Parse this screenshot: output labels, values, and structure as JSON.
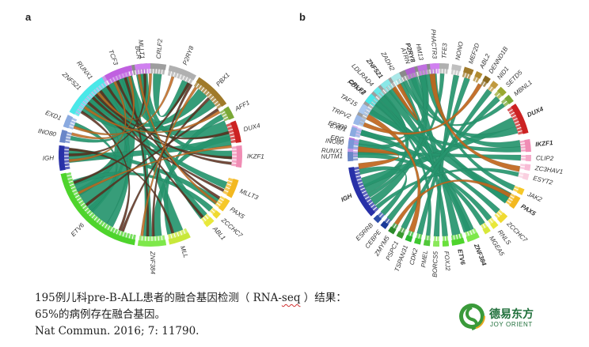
{
  "panels": [
    {
      "letter": "a",
      "genes": [
        {
          "name": "RUNX1",
          "start": 209,
          "end": 255,
          "color": "#c89ae6",
          "bold": false
        },
        {
          "name": "BCR",
          "start": 258,
          "end": 268,
          "color": "#8a8a8a",
          "bold": false
        },
        {
          "name": "CRLF2",
          "start": 270,
          "end": 280,
          "color": "#9e9e9e",
          "bold": false
        },
        {
          "name": "P2RY8",
          "start": 282,
          "end": 300,
          "color": "#b0b0b0",
          "bold": false
        },
        {
          "name": "PBX1",
          "start": 302,
          "end": 326,
          "color": "#a07a2a",
          "bold": false
        },
        {
          "name": "AFF1",
          "start": 328,
          "end": 336,
          "color": "#7aa836",
          "bold": false
        },
        {
          "name": "DUX4",
          "start": 338,
          "end": 352,
          "color": "#cc2222",
          "bold": false
        },
        {
          "name": "IKZF1",
          "start": 354,
          "end": 368,
          "color": "#f08cb4",
          "bold": false
        },
        {
          "name": "MLLT3",
          "start": 376,
          "end": 388,
          "color": "#f3b820",
          "bold": false
        },
        {
          "name": "PAX5",
          "start": 390,
          "end": 398,
          "color": "#f6c828",
          "bold": false
        },
        {
          "name": "ZCCHC7",
          "start": 400,
          "end": 404,
          "color": "#f0da30",
          "bold": false
        },
        {
          "name": "ABL1",
          "start": 406,
          "end": 412,
          "color": "#e8e83a",
          "bold": false
        },
        {
          "name": "MLL",
          "start": 424,
          "end": 438,
          "color": "#c8e83a",
          "bold": false
        },
        {
          "name": "ZNF384",
          "start": 440,
          "end": 458,
          "color": "#7ee84a",
          "bold": false
        },
        {
          "name": "ETV6",
          "start": 460,
          "end": 528,
          "color": "#4ed42c",
          "bold": false
        },
        {
          "name": "IGH",
          "start": 530,
          "end": 546,
          "color": "#2830a8",
          "bold": false
        },
        {
          "name": "INO80",
          "start": 548,
          "end": 556,
          "color": "#6a86c8",
          "bold": false
        },
        {
          "name": "EXD1",
          "start": 558,
          "end": 566,
          "color": "#8aaae0",
          "bold": false
        },
        {
          "name": "ZNF521",
          "start": 568,
          "end": 598,
          "color": "#4ae8e8",
          "bold": false
        },
        {
          "name": "TCF3",
          "start": 600,
          "end": 618,
          "color": "#c060e0",
          "bold": false
        },
        {
          "name": "MLLT1",
          "start": 620,
          "end": 630,
          "color": "#d080f0",
          "bold": false
        }
      ],
      "links": [
        {
          "from": 235,
          "to": 505,
          "width": 20,
          "color": "#26956e"
        },
        {
          "from": 245,
          "to": 490,
          "width": 16,
          "color": "#26956e"
        },
        {
          "from": 220,
          "to": 515,
          "width": 10,
          "color": "#26956e"
        },
        {
          "from": 612,
          "to": 340,
          "width": 10,
          "color": "#26956e"
        },
        {
          "from": 625,
          "to": 360,
          "width": 6,
          "color": "#26956e"
        },
        {
          "from": 263,
          "to": 409,
          "width": 6,
          "color": "#26956e"
        },
        {
          "from": 275,
          "to": 296,
          "width": 6,
          "color": "#26956e"
        },
        {
          "from": 310,
          "to": 585,
          "width": 8,
          "color": "#26956e"
        },
        {
          "from": 320,
          "to": 575,
          "width": 6,
          "color": "#26956e"
        },
        {
          "from": 347,
          "to": 445,
          "width": 6,
          "color": "#26956e"
        },
        {
          "from": 430,
          "to": 610,
          "width": 7,
          "color": "#26956e"
        },
        {
          "from": 538,
          "to": 350,
          "width": 7,
          "color": "#26956e"
        },
        {
          "from": 542,
          "to": 395,
          "width": 5,
          "color": "#26956e"
        },
        {
          "from": 452,
          "to": 614,
          "width": 6,
          "color": "#26956e"
        },
        {
          "from": 382,
          "to": 228,
          "width": 5,
          "color": "#26956e"
        },
        {
          "from": 402,
          "to": 520,
          "width": 4,
          "color": "#26956e"
        },
        {
          "from": 595,
          "to": 480,
          "width": 5,
          "color": "#26956e"
        },
        {
          "from": 552,
          "to": 248,
          "width": 3,
          "color": "#26956e"
        },
        {
          "from": 562,
          "to": 498,
          "width": 3,
          "color": "#26956e"
        },
        {
          "from": 332,
          "to": 436,
          "width": 4,
          "color": "#26956e"
        },
        {
          "from": 212,
          "to": 472,
          "width": 2,
          "color": "#5a2a1a"
        },
        {
          "from": 238,
          "to": 366,
          "width": 2,
          "color": "#5a2a1a"
        },
        {
          "from": 252,
          "to": 452,
          "width": 2,
          "color": "#5a2a1a"
        },
        {
          "from": 266,
          "to": 540,
          "width": 2,
          "color": "#5a2a1a"
        },
        {
          "from": 298,
          "to": 520,
          "width": 2,
          "color": "#5a2a1a"
        },
        {
          "from": 316,
          "to": 470,
          "width": 2,
          "color": "#5a2a1a"
        },
        {
          "from": 344,
          "to": 588,
          "width": 2,
          "color": "#5a2a1a"
        },
        {
          "from": 362,
          "to": 225,
          "width": 2,
          "color": "#5a2a1a"
        },
        {
          "from": 392,
          "to": 606,
          "width": 2,
          "color": "#5a2a1a"
        },
        {
          "from": 410,
          "to": 232,
          "width": 2,
          "color": "#5a2a1a"
        },
        {
          "from": 434,
          "to": 544,
          "width": 2,
          "color": "#5a2a1a"
        },
        {
          "from": 448,
          "to": 300,
          "width": 2,
          "color": "#5a2a1a"
        },
        {
          "from": 502,
          "to": 326,
          "width": 2,
          "color": "#5a2a1a"
        },
        {
          "from": 580,
          "to": 386,
          "width": 2,
          "color": "#5a2a1a"
        },
        {
          "from": 255,
          "to": 555,
          "width": 2,
          "color": "#c0651c"
        },
        {
          "from": 270,
          "to": 590,
          "width": 2,
          "color": "#c0651c"
        },
        {
          "from": 286,
          "to": 560,
          "width": 2,
          "color": "#c0651c"
        },
        {
          "from": 304,
          "to": 456,
          "width": 2,
          "color": "#c0651c"
        },
        {
          "from": 354,
          "to": 512,
          "width": 2,
          "color": "#c0651c"
        },
        {
          "from": 396,
          "to": 622,
          "width": 2,
          "color": "#c0651c"
        },
        {
          "from": 216,
          "to": 328,
          "width": 2,
          "color": "#c0651c"
        },
        {
          "from": 536,
          "to": 244,
          "width": 2,
          "color": "#c0651c"
        }
      ]
    },
    {
      "letter": "b",
      "genes": [
        {
          "name": "RUNX1",
          "start": 179,
          "end": 185,
          "color": "#c89ae6",
          "bold": false
        },
        {
          "name": "ERG",
          "start": 187,
          "end": 191,
          "color": "#b070d8",
          "bold": false
        },
        {
          "name": "EP300",
          "start": 193,
          "end": 199,
          "color": "#d4b0ee",
          "bold": false
        },
        {
          "name": "CRLF2",
          "start": 201,
          "end": 238,
          "color": "#9e9e9e",
          "bold": true
        },
        {
          "name": "P2RY8",
          "start": 240,
          "end": 268,
          "color": "#8a8a8a",
          "bold": true
        },
        {
          "name": "TFE3",
          "start": 270,
          "end": 276,
          "color": "#b0b0b0",
          "bold": false
        },
        {
          "name": "NONO",
          "start": 278,
          "end": 284,
          "color": "#c0c0c0",
          "bold": false
        },
        {
          "name": "MEF2D",
          "start": 286,
          "end": 292,
          "color": "#a07a2a",
          "bold": false
        },
        {
          "name": "ABL2",
          "start": 294,
          "end": 298,
          "color": "#b08a30",
          "bold": false
        },
        {
          "name": "DENND1B",
          "start": 300,
          "end": 304,
          "color": "#8a6a20",
          "bold": false
        },
        {
          "name": "NID1",
          "start": 306,
          "end": 310,
          "color": "#c09a40",
          "bold": false
        },
        {
          "name": "SETD5",
          "start": 312,
          "end": 317,
          "color": "#9aa830",
          "bold": false
        },
        {
          "name": "MBNL1",
          "start": 319,
          "end": 324,
          "color": "#7aa836",
          "bold": false
        },
        {
          "name": "DUX4",
          "start": 326,
          "end": 346,
          "color": "#cc2222",
          "bold": true
        },
        {
          "name": "IKZF1",
          "start": 350,
          "end": 358,
          "color": "#f08cb4",
          "bold": true
        },
        {
          "name": "CLIP2",
          "start": 360,
          "end": 364,
          "color": "#f4a8c8",
          "bold": false
        },
        {
          "name": "ZC3HAV1",
          "start": 366,
          "end": 370,
          "color": "#f8bcd6",
          "bold": false
        },
        {
          "name": "ESYT2",
          "start": 372,
          "end": 376,
          "color": "#fad0e0",
          "bold": false
        },
        {
          "name": "JAK2",
          "start": 382,
          "end": 386,
          "color": "#f6c828",
          "bold": false
        },
        {
          "name": "PAX5",
          "start": 388,
          "end": 396,
          "color": "#f3b820",
          "bold": true
        },
        {
          "name": "ZCCHC7",
          "start": 402,
          "end": 408,
          "color": "#f0da30",
          "bold": false
        },
        {
          "name": "RNLS",
          "start": 410,
          "end": 414,
          "color": "#e8e83a",
          "bold": false
        },
        {
          "name": "MGEA5",
          "start": 416,
          "end": 420,
          "color": "#d8e83a",
          "bold": false
        },
        {
          "name": "ZNF384",
          "start": 424,
          "end": 432,
          "color": "#7ee84a",
          "bold": true
        },
        {
          "name": "ETV6",
          "start": 434,
          "end": 442,
          "color": "#4ed42c",
          "bold": true
        },
        {
          "name": "FOXJ2",
          "start": 444,
          "end": 448,
          "color": "#6ae03c",
          "bold": false
        },
        {
          "name": "BORCS5",
          "start": 450,
          "end": 454,
          "color": "#8ae85a",
          "bold": false
        },
        {
          "name": "PMEL",
          "start": 456,
          "end": 460,
          "color": "#52c83a",
          "bold": false
        },
        {
          "name": "CDK2",
          "start": 462,
          "end": 466,
          "color": "#3ec830",
          "bold": false
        },
        {
          "name": "TSPAN31",
          "start": 468,
          "end": 472,
          "color": "#2ab830",
          "bold": false
        },
        {
          "name": "PSPC1",
          "start": 474,
          "end": 478,
          "color": "#3a9a30",
          "bold": false
        },
        {
          "name": "ZMYM5",
          "start": 480,
          "end": 484,
          "color": "#2a8a2a",
          "bold": false
        },
        {
          "name": "CEBPE",
          "start": 486,
          "end": 490,
          "color": "#1a3a98",
          "bold": false
        },
        {
          "name": "ESRRB",
          "start": 492,
          "end": 496,
          "color": "#2a4aa8",
          "bold": false
        },
        {
          "name": "IGH",
          "start": 498,
          "end": 532,
          "color": "#2830a8",
          "bold": true
        },
        {
          "name": "NUTM1",
          "start": 536,
          "end": 542,
          "color": "#6a86c8",
          "bold": false
        },
        {
          "name": "INO80",
          "start": 544,
          "end": 550,
          "color": "#7a96d8",
          "bold": false
        },
        {
          "name": "EXD1",
          "start": 552,
          "end": 558,
          "color": "#8aaae0",
          "bold": false
        },
        {
          "name": "TRPV2",
          "start": 560,
          "end": 566,
          "color": "#9ab8e8",
          "bold": false
        },
        {
          "name": "TAF15",
          "start": 568,
          "end": 574,
          "color": "#aac8f0",
          "bold": false
        },
        {
          "name": "FOXK2",
          "start": 576,
          "end": 582,
          "color": "#4ae8e8",
          "bold": false
        },
        {
          "name": "LDLRAD4",
          "start": 584,
          "end": 588,
          "color": "#6ae8e8",
          "bold": false
        },
        {
          "name": "ZNF521",
          "start": 590,
          "end": 596,
          "color": "#8ae8e8",
          "bold": true
        },
        {
          "name": "ZADH2",
          "start": 598,
          "end": 604,
          "color": "#aae8e8",
          "bold": false
        },
        {
          "name": "ATRN",
          "start": 608,
          "end": 614,
          "color": "#b060d0",
          "bold": false
        },
        {
          "name": "HM13",
          "start": 616,
          "end": 622,
          "color": "#c070e0",
          "bold": false
        },
        {
          "name": "PHACTR3",
          "start": 624,
          "end": 630,
          "color": "#d080f0",
          "bold": false
        }
      ],
      "links": [
        {
          "from": 215,
          "to": 392,
          "width": 8,
          "color": "#26956e"
        },
        {
          "from": 225,
          "to": 515,
          "width": 7,
          "color": "#26956e"
        },
        {
          "from": 230,
          "to": 428,
          "width": 6,
          "color": "#26956e"
        },
        {
          "from": 250,
          "to": 438,
          "width": 6,
          "color": "#26956e"
        },
        {
          "from": 258,
          "to": 505,
          "width": 6,
          "color": "#26956e"
        },
        {
          "from": 262,
          "to": 352,
          "width": 5,
          "color": "#26956e"
        },
        {
          "from": 336,
          "to": 520,
          "width": 7,
          "color": "#26956e"
        },
        {
          "from": 342,
          "to": 612,
          "width": 5,
          "color": "#26956e"
        },
        {
          "from": 356,
          "to": 572,
          "width": 4,
          "color": "#26956e"
        },
        {
          "from": 362,
          "to": 182,
          "width": 4,
          "color": "#26956e"
        },
        {
          "from": 384,
          "to": 626,
          "width": 4,
          "color": "#26956e"
        },
        {
          "from": 394,
          "to": 594,
          "width": 5,
          "color": "#26956e"
        },
        {
          "from": 404,
          "to": 196,
          "width": 4,
          "color": "#26956e"
        },
        {
          "from": 412,
          "to": 540,
          "width": 4,
          "color": "#26956e"
        },
        {
          "from": 418,
          "to": 189,
          "width": 4,
          "color": "#26956e"
        },
        {
          "from": 430,
          "to": 580,
          "width": 5,
          "color": "#26956e"
        },
        {
          "from": 446,
          "to": 602,
          "width": 4,
          "color": "#26956e"
        },
        {
          "from": 452,
          "to": 282,
          "width": 4,
          "color": "#26956e"
        },
        {
          "from": 464,
          "to": 290,
          "width": 4,
          "color": "#26956e"
        },
        {
          "from": 476,
          "to": 308,
          "width": 4,
          "color": "#26956e"
        },
        {
          "from": 488,
          "to": 316,
          "width": 4,
          "color": "#26956e"
        },
        {
          "from": 494,
          "to": 528,
          "width": 4,
          "color": "#26956e"
        },
        {
          "from": 546,
          "to": 618,
          "width": 4,
          "color": "#26956e"
        },
        {
          "from": 556,
          "to": 585,
          "width": 4,
          "color": "#26956e"
        },
        {
          "from": 220,
          "to": 458,
          "width": 3,
          "color": "#26956e"
        },
        {
          "from": 374,
          "to": 500,
          "width": 3,
          "color": "#26956e"
        },
        {
          "from": 245,
          "to": 322,
          "width": 3,
          "color": "#26956e"
        },
        {
          "from": 510,
          "to": 272,
          "width": 3,
          "color": "#26956e"
        },
        {
          "from": 265,
          "to": 370,
          "width": 4,
          "color": "#c0651c"
        },
        {
          "from": 208,
          "to": 470,
          "width": 4,
          "color": "#c0651c"
        },
        {
          "from": 184,
          "to": 532,
          "width": 4,
          "color": "#c0651c"
        },
        {
          "from": 300,
          "to": 562,
          "width": 3,
          "color": "#c0651c"
        },
        {
          "from": 390,
          "to": 482,
          "width": 3,
          "color": "#c0651c"
        },
        {
          "from": 236,
          "to": 600,
          "width": 3,
          "color": "#c0651c"
        }
      ]
    }
  ],
  "caption": {
    "line1": "195例儿科pre-B-ALL患者的融合基因检测（ RNA-seq ）结果：",
    "line1_a": "195例儿科pre-B-ALL患者的融合基因检测（ RNA-",
    "line1_sq": "seq",
    "line1_b": " ）结果：",
    "line2": "65%的病例存在融合基因。",
    "citation": "Nat Commun. 2016; 7: 11790."
  },
  "logo": {
    "cn": "德易东方",
    "en": "JOY ORIENT"
  }
}
